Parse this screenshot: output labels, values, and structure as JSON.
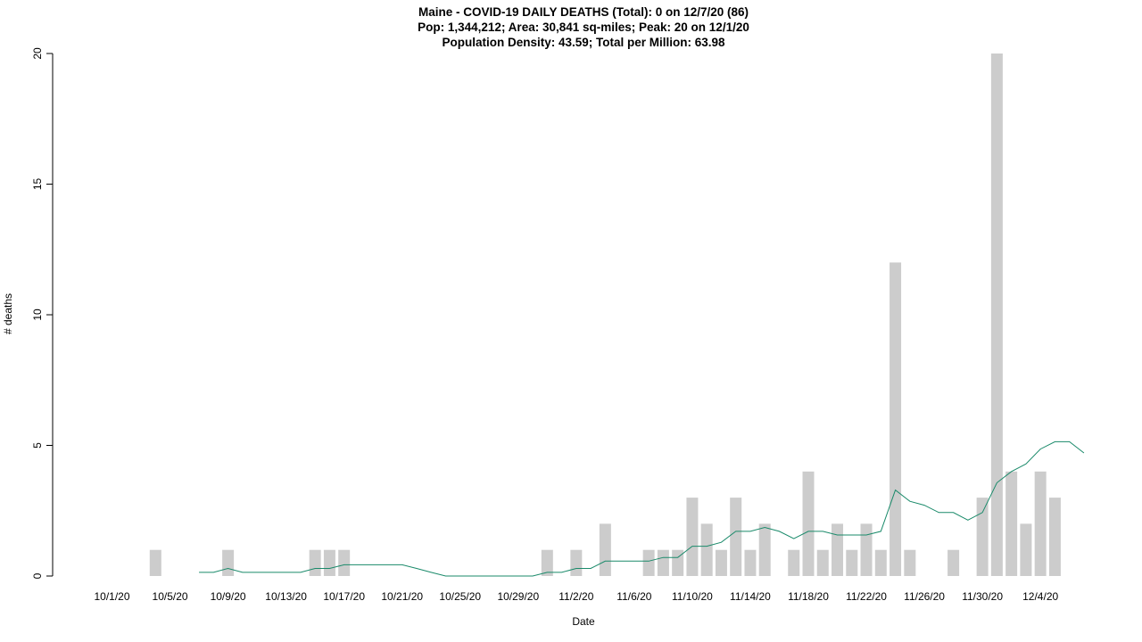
{
  "chart_data": {
    "type": "bar",
    "title": "Maine - COVID-19 DAILY DEATHS (Total): 0 on 12/7/20 (86)",
    "subtitle": "Pop: 1,344,212; Area: 30,841 sq-miles; Peak: 20 on 12/1/20",
    "subtitle2": "Population Density: 43.59; Total per Million: 63.98",
    "xlabel": "Date",
    "ylabel": "# deaths",
    "ylim": [
      0,
      20
    ],
    "yticks": [
      0,
      5,
      10,
      15,
      20
    ],
    "grid": false,
    "categories": [
      "9/29/20",
      "9/30/20",
      "10/1/20",
      "10/2/20",
      "10/3/20",
      "10/4/20",
      "10/5/20",
      "10/6/20",
      "10/7/20",
      "10/8/20",
      "10/9/20",
      "10/10/20",
      "10/11/20",
      "10/12/20",
      "10/13/20",
      "10/14/20",
      "10/15/20",
      "10/16/20",
      "10/17/20",
      "10/18/20",
      "10/19/20",
      "10/20/20",
      "10/21/20",
      "10/22/20",
      "10/23/20",
      "10/24/20",
      "10/25/20",
      "10/26/20",
      "10/27/20",
      "10/28/20",
      "10/29/20",
      "10/30/20",
      "10/31/20",
      "11/1/20",
      "11/2/20",
      "11/3/20",
      "11/4/20",
      "11/5/20",
      "11/6/20",
      "11/7/20",
      "11/8/20",
      "11/9/20",
      "11/10/20",
      "11/11/20",
      "11/12/20",
      "11/13/20",
      "11/14/20",
      "11/15/20",
      "11/16/20",
      "11/17/20",
      "11/18/20",
      "11/19/20",
      "11/20/20",
      "11/21/20",
      "11/22/20",
      "11/23/20",
      "11/24/20",
      "11/25/20",
      "11/26/20",
      "11/27/20",
      "11/28/20",
      "11/29/20",
      "11/30/20",
      "12/1/20",
      "12/2/20",
      "12/3/20",
      "12/4/20",
      "12/5/20",
      "12/6/20",
      "12/7/20"
    ],
    "xtick_labels": [
      "10/1/20",
      "10/5/20",
      "10/9/20",
      "10/13/20",
      "10/17/20",
      "10/21/20",
      "10/25/20",
      "10/29/20",
      "11/2/20",
      "11/6/20",
      "11/10/20",
      "11/14/20",
      "11/18/20",
      "11/22/20",
      "11/26/20",
      "11/30/20",
      "12/4/20"
    ],
    "series": [
      {
        "type": "bar",
        "color": "#cccccc",
        "values": [
          0,
          0,
          0,
          0,
          0,
          1,
          0,
          0,
          0,
          0,
          1,
          0,
          0,
          0,
          0,
          0,
          1,
          1,
          1,
          0,
          0,
          0,
          0,
          0,
          0,
          0,
          0,
          0,
          0,
          0,
          0,
          0,
          1,
          0,
          1,
          0,
          2,
          0,
          0,
          1,
          1,
          1,
          3,
          2,
          1,
          3,
          1,
          2,
          0,
          1,
          4,
          1,
          2,
          1,
          2,
          1,
          12,
          1,
          0,
          0,
          1,
          0,
          3,
          20,
          4,
          2,
          4,
          3,
          0,
          0
        ]
      },
      {
        "type": "line",
        "color": "#1a8a6a",
        "values": [
          null,
          null,
          null,
          null,
          null,
          null,
          null,
          null,
          0.14,
          0.14,
          0.29,
          0.14,
          0.14,
          0.14,
          0.14,
          0.14,
          0.29,
          0.29,
          0.43,
          0.43,
          0.43,
          0.43,
          0.43,
          0.29,
          0.14,
          0,
          0,
          0,
          0,
          0,
          0,
          0,
          0.14,
          0.14,
          0.29,
          0.29,
          0.57,
          0.57,
          0.57,
          0.57,
          0.71,
          0.71,
          1.14,
          1.14,
          1.29,
          1.71,
          1.71,
          1.86,
          1.71,
          1.43,
          1.71,
          1.71,
          1.57,
          1.57,
          1.57,
          1.71,
          3.29,
          2.86,
          2.71,
          2.43,
          2.43,
          2.14,
          2.43,
          3.57,
          4,
          4.29,
          4.86,
          5.14,
          5.14,
          4.71
        ]
      }
    ]
  }
}
